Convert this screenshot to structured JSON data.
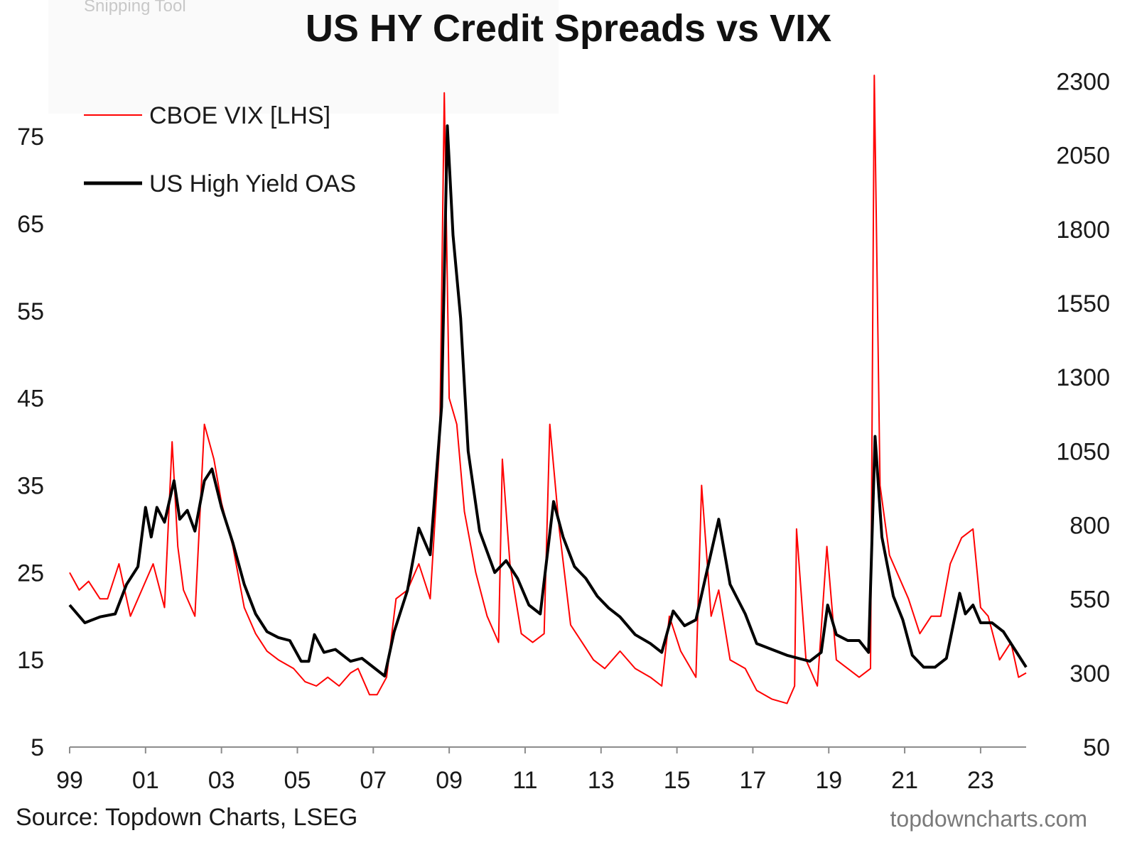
{
  "overlay": {
    "tool_label": "Snipping Tool"
  },
  "source_text": "Source: Topdown Charts, LSEG",
  "footer_text": "topdowncharts.com",
  "chart_data": {
    "type": "line",
    "title": "US HY Credit Spreads vs VIX",
    "x_tick_labels": [
      "99",
      "01",
      "03",
      "05",
      "07",
      "09",
      "11",
      "13",
      "15",
      "17",
      "19",
      "21",
      "23"
    ],
    "x_tick_years": [
      1999,
      2001,
      2003,
      2005,
      2007,
      2009,
      2011,
      2013,
      2015,
      2017,
      2019,
      2021,
      2023
    ],
    "xlim": [
      1999,
      2024.2
    ],
    "y_left": {
      "ticks": [
        5,
        15,
        25,
        35,
        45,
        55,
        65,
        75
      ],
      "lim": [
        5,
        82.5
      ]
    },
    "y_right": {
      "ticks": [
        50,
        300,
        550,
        800,
        1050,
        1300,
        1550,
        1800,
        2050,
        2300
      ],
      "lim": [
        50,
        2335
      ]
    },
    "legend_position": "top-left",
    "grid": false,
    "series": [
      {
        "name": "CBOE VIX [LHS]",
        "axis": "left",
        "color": "#ff0000",
        "points": [
          [
            1999.0,
            25
          ],
          [
            1999.25,
            23
          ],
          [
            1999.5,
            24
          ],
          [
            1999.8,
            22
          ],
          [
            2000.0,
            22
          ],
          [
            2000.3,
            26
          ],
          [
            2000.6,
            20
          ],
          [
            2000.9,
            23
          ],
          [
            2001.2,
            26
          ],
          [
            2001.5,
            21
          ],
          [
            2001.7,
            40
          ],
          [
            2001.85,
            28
          ],
          [
            2002.0,
            23
          ],
          [
            2002.3,
            20
          ],
          [
            2002.55,
            42
          ],
          [
            2002.8,
            38
          ],
          [
            2003.0,
            33
          ],
          [
            2003.3,
            28
          ],
          [
            2003.6,
            21
          ],
          [
            2003.9,
            18
          ],
          [
            2004.2,
            16
          ],
          [
            2004.5,
            15
          ],
          [
            2004.9,
            14
          ],
          [
            2005.2,
            12.5
          ],
          [
            2005.5,
            12
          ],
          [
            2005.8,
            13
          ],
          [
            2006.1,
            12
          ],
          [
            2006.4,
            13.5
          ],
          [
            2006.6,
            14
          ],
          [
            2006.9,
            11
          ],
          [
            2007.1,
            11
          ],
          [
            2007.35,
            13
          ],
          [
            2007.6,
            22
          ],
          [
            2007.9,
            23
          ],
          [
            2008.2,
            26
          ],
          [
            2008.5,
            22
          ],
          [
            2008.75,
            40
          ],
          [
            2008.87,
            80
          ],
          [
            2009.0,
            45
          ],
          [
            2009.2,
            42
          ],
          [
            2009.4,
            32
          ],
          [
            2009.7,
            25
          ],
          [
            2010.0,
            20
          ],
          [
            2010.3,
            17
          ],
          [
            2010.4,
            38
          ],
          [
            2010.6,
            26
          ],
          [
            2010.9,
            18
          ],
          [
            2011.2,
            17
          ],
          [
            2011.5,
            18
          ],
          [
            2011.65,
            42
          ],
          [
            2011.9,
            30
          ],
          [
            2012.2,
            19
          ],
          [
            2012.5,
            17
          ],
          [
            2012.8,
            15
          ],
          [
            2013.1,
            14
          ],
          [
            2013.5,
            16
          ],
          [
            2013.9,
            14
          ],
          [
            2014.3,
            13
          ],
          [
            2014.6,
            12
          ],
          [
            2014.8,
            20
          ],
          [
            2015.1,
            16
          ],
          [
            2015.5,
            13
          ],
          [
            2015.65,
            35
          ],
          [
            2015.9,
            20
          ],
          [
            2016.1,
            23
          ],
          [
            2016.4,
            15
          ],
          [
            2016.8,
            14
          ],
          [
            2017.1,
            11.5
          ],
          [
            2017.5,
            10.5
          ],
          [
            2017.9,
            10
          ],
          [
            2018.1,
            12
          ],
          [
            2018.15,
            30
          ],
          [
            2018.4,
            15
          ],
          [
            2018.7,
            12
          ],
          [
            2018.95,
            28
          ],
          [
            2019.2,
            15
          ],
          [
            2019.5,
            14
          ],
          [
            2019.8,
            13
          ],
          [
            2020.1,
            14
          ],
          [
            2020.2,
            82
          ],
          [
            2020.35,
            35
          ],
          [
            2020.6,
            27
          ],
          [
            2020.9,
            24
          ],
          [
            2021.1,
            22
          ],
          [
            2021.4,
            18
          ],
          [
            2021.7,
            20
          ],
          [
            2021.95,
            20
          ],
          [
            2022.2,
            26
          ],
          [
            2022.5,
            29
          ],
          [
            2022.8,
            30
          ],
          [
            2023.0,
            21
          ],
          [
            2023.2,
            20
          ],
          [
            2023.5,
            15
          ],
          [
            2023.8,
            17
          ],
          [
            2024.0,
            13
          ],
          [
            2024.2,
            13.5
          ]
        ]
      },
      {
        "name": "US High Yield OAS",
        "axis": "right",
        "color": "#000000",
        "points": [
          [
            1999.0,
            530
          ],
          [
            1999.4,
            470
          ],
          [
            1999.8,
            490
          ],
          [
            2000.2,
            500
          ],
          [
            2000.5,
            600
          ],
          [
            2000.8,
            660
          ],
          [
            2001.0,
            860
          ],
          [
            2001.15,
            760
          ],
          [
            2001.3,
            860
          ],
          [
            2001.5,
            810
          ],
          [
            2001.75,
            950
          ],
          [
            2001.9,
            820
          ],
          [
            2002.1,
            850
          ],
          [
            2002.3,
            780
          ],
          [
            2002.55,
            950
          ],
          [
            2002.75,
            990
          ],
          [
            2003.0,
            860
          ],
          [
            2003.3,
            740
          ],
          [
            2003.6,
            600
          ],
          [
            2003.9,
            500
          ],
          [
            2004.2,
            440
          ],
          [
            2004.5,
            420
          ],
          [
            2004.8,
            410
          ],
          [
            2005.1,
            340
          ],
          [
            2005.3,
            340
          ],
          [
            2005.45,
            430
          ],
          [
            2005.7,
            370
          ],
          [
            2006.0,
            380
          ],
          [
            2006.4,
            340
          ],
          [
            2006.7,
            350
          ],
          [
            2007.0,
            320
          ],
          [
            2007.3,
            290
          ],
          [
            2007.55,
            440
          ],
          [
            2007.9,
            580
          ],
          [
            2008.2,
            790
          ],
          [
            2008.5,
            700
          ],
          [
            2008.8,
            1200
          ],
          [
            2008.95,
            2150
          ],
          [
            2009.1,
            1780
          ],
          [
            2009.3,
            1500
          ],
          [
            2009.5,
            1050
          ],
          [
            2009.8,
            780
          ],
          [
            2010.2,
            640
          ],
          [
            2010.5,
            680
          ],
          [
            2010.8,
            620
          ],
          [
            2011.1,
            530
          ],
          [
            2011.4,
            500
          ],
          [
            2011.75,
            880
          ],
          [
            2012.0,
            760
          ],
          [
            2012.3,
            660
          ],
          [
            2012.6,
            620
          ],
          [
            2012.9,
            560
          ],
          [
            2013.2,
            520
          ],
          [
            2013.5,
            490
          ],
          [
            2013.9,
            430
          ],
          [
            2014.3,
            400
          ],
          [
            2014.6,
            370
          ],
          [
            2014.9,
            510
          ],
          [
            2015.2,
            460
          ],
          [
            2015.5,
            480
          ],
          [
            2015.8,
            650
          ],
          [
            2016.1,
            820
          ],
          [
            2016.4,
            600
          ],
          [
            2016.8,
            500
          ],
          [
            2017.1,
            400
          ],
          [
            2017.5,
            380
          ],
          [
            2017.9,
            360
          ],
          [
            2018.2,
            350
          ],
          [
            2018.5,
            340
          ],
          [
            2018.8,
            370
          ],
          [
            2018.97,
            530
          ],
          [
            2019.2,
            430
          ],
          [
            2019.5,
            410
          ],
          [
            2019.8,
            410
          ],
          [
            2020.05,
            370
          ],
          [
            2020.22,
            1100
          ],
          [
            2020.4,
            760
          ],
          [
            2020.7,
            560
          ],
          [
            2020.95,
            480
          ],
          [
            2021.2,
            360
          ],
          [
            2021.5,
            320
          ],
          [
            2021.8,
            320
          ],
          [
            2022.1,
            350
          ],
          [
            2022.45,
            570
          ],
          [
            2022.6,
            500
          ],
          [
            2022.8,
            530
          ],
          [
            2023.0,
            470
          ],
          [
            2023.3,
            470
          ],
          [
            2023.6,
            440
          ],
          [
            2023.9,
            380
          ],
          [
            2024.2,
            320
          ]
        ]
      }
    ]
  }
}
